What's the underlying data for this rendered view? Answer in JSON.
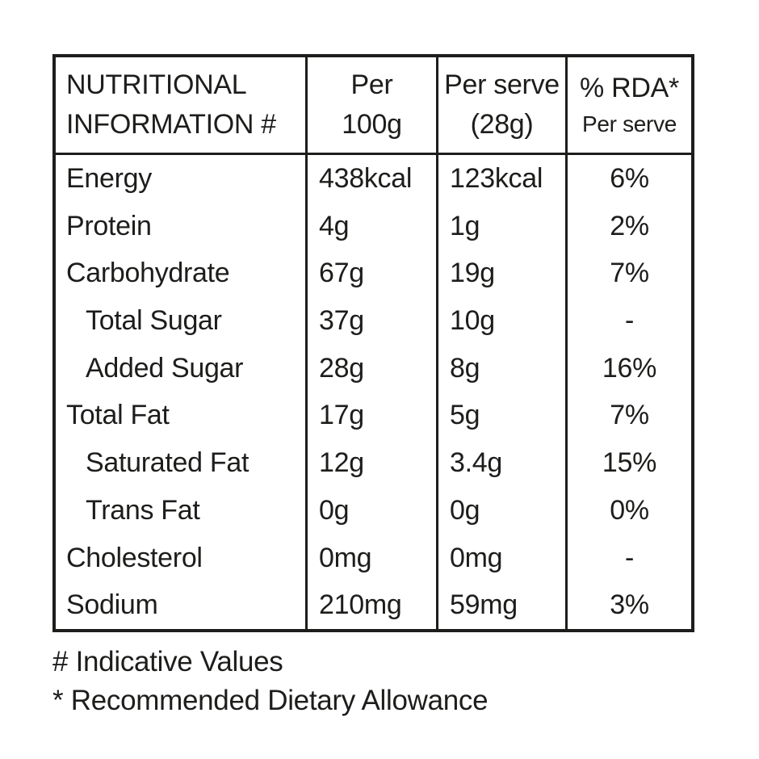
{
  "table": {
    "header": {
      "col1_line1": "NUTRITIONAL",
      "col1_line2": "INFORMATION #",
      "col2_line1": "Per",
      "col2_line2": "100g",
      "col3_line1": "Per serve",
      "col3_line2": "(28g)",
      "col4_line1": "% RDA*",
      "col4_line2": "Per serve"
    },
    "rows": [
      {
        "label": "Energy",
        "indent": false,
        "per100g": "438kcal",
        "perServe": "123kcal",
        "rda": "6%"
      },
      {
        "label": "Protein",
        "indent": false,
        "per100g": "4g",
        "perServe": "1g",
        "rda": "2%"
      },
      {
        "label": "Carbohydrate",
        "indent": false,
        "per100g": "67g",
        "perServe": "19g",
        "rda": "7%"
      },
      {
        "label": "Total Sugar",
        "indent": true,
        "per100g": "37g",
        "perServe": "10g",
        "rda": "-"
      },
      {
        "label": "Added Sugar",
        "indent": true,
        "per100g": "28g",
        "perServe": "8g",
        "rda": "16%"
      },
      {
        "label": "Total Fat",
        "indent": false,
        "per100g": "17g",
        "perServe": "5g",
        "rda": "7%"
      },
      {
        "label": "Saturated Fat",
        "indent": true,
        "per100g": "12g",
        "perServe": "3.4g",
        "rda": "15%"
      },
      {
        "label": "Trans Fat",
        "indent": true,
        "per100g": "0g",
        "perServe": "0g",
        "rda": "0%"
      },
      {
        "label": "Cholesterol",
        "indent": false,
        "per100g": "0mg",
        "perServe": "0mg",
        "rda": "-"
      },
      {
        "label": "Sodium",
        "indent": false,
        "per100g": "210mg",
        "perServe": "59mg",
        "rda": "3%"
      }
    ]
  },
  "footnotes": [
    "# Indicative Values",
    "* Recommended Dietary Allowance"
  ],
  "colors": {
    "text": "#1d1d1b",
    "border": "#1d1d1b",
    "background": "#ffffff"
  }
}
